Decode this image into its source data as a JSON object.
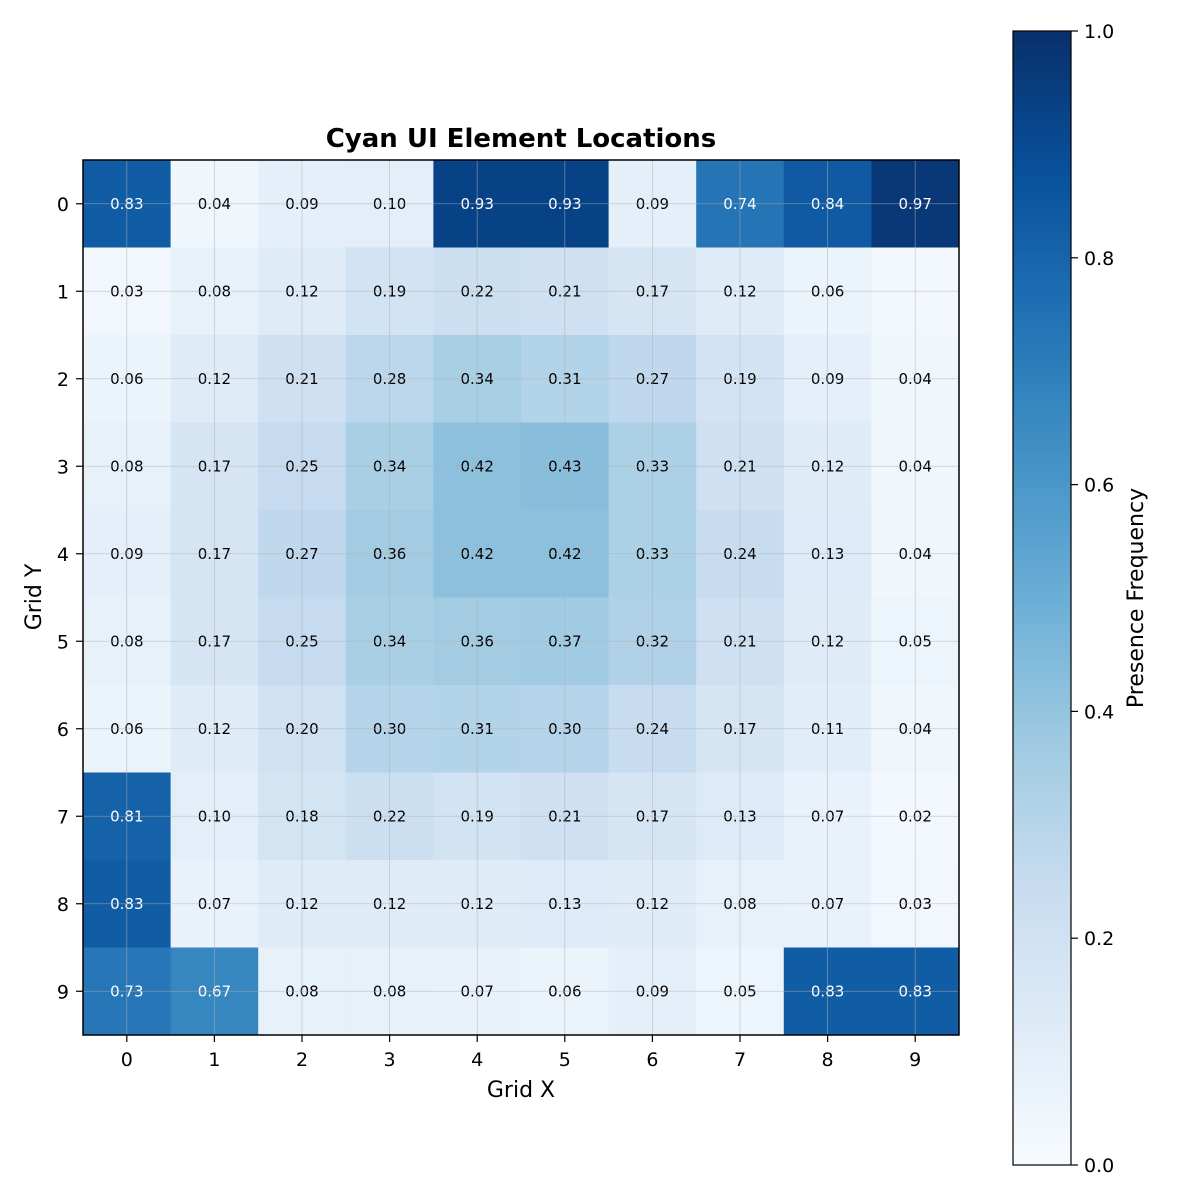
{
  "chart_data": {
    "type": "heatmap",
    "title": "Cyan UI Element Locations",
    "xlabel": "Grid X",
    "ylabel": "Grid Y",
    "x_ticks": [
      "0",
      "1",
      "2",
      "3",
      "4",
      "5",
      "6",
      "7",
      "8",
      "9"
    ],
    "y_ticks": [
      "0",
      "1",
      "2",
      "3",
      "4",
      "5",
      "6",
      "7",
      "8",
      "9"
    ],
    "values": [
      [
        0.83,
        0.04,
        0.09,
        0.1,
        0.93,
        0.93,
        0.09,
        0.74,
        0.84,
        0.97
      ],
      [
        0.03,
        0.08,
        0.12,
        0.19,
        0.22,
        0.21,
        0.17,
        0.12,
        0.06,
        null
      ],
      [
        0.06,
        0.12,
        0.21,
        0.28,
        0.34,
        0.31,
        0.27,
        0.19,
        0.09,
        0.04
      ],
      [
        0.08,
        0.17,
        0.25,
        0.34,
        0.42,
        0.43,
        0.33,
        0.21,
        0.12,
        0.04
      ],
      [
        0.09,
        0.17,
        0.27,
        0.36,
        0.42,
        0.42,
        0.33,
        0.24,
        0.13,
        0.04
      ],
      [
        0.08,
        0.17,
        0.25,
        0.34,
        0.36,
        0.37,
        0.32,
        0.21,
        0.12,
        0.05
      ],
      [
        0.06,
        0.12,
        0.2,
        0.3,
        0.31,
        0.3,
        0.24,
        0.17,
        0.11,
        0.04
      ],
      [
        0.81,
        0.1,
        0.18,
        0.22,
        0.19,
        0.21,
        0.17,
        0.13,
        0.07,
        0.02
      ],
      [
        0.83,
        0.07,
        0.12,
        0.12,
        0.12,
        0.13,
        0.12,
        0.08,
        0.07,
        0.03
      ],
      [
        0.73,
        0.67,
        0.08,
        0.08,
        0.07,
        0.06,
        0.09,
        0.05,
        0.83,
        0.83
      ]
    ],
    "colormap": "Blues",
    "vmin": 0.0,
    "vmax": 1.0,
    "colorbar": {
      "label": "Presence Frequency",
      "ticks": [
        "0.0",
        "0.2",
        "0.4",
        "0.6",
        "0.8",
        "1.0"
      ]
    },
    "grid": true,
    "colors": {
      "low": "#f7fbff",
      "high": "#08306b"
    }
  }
}
